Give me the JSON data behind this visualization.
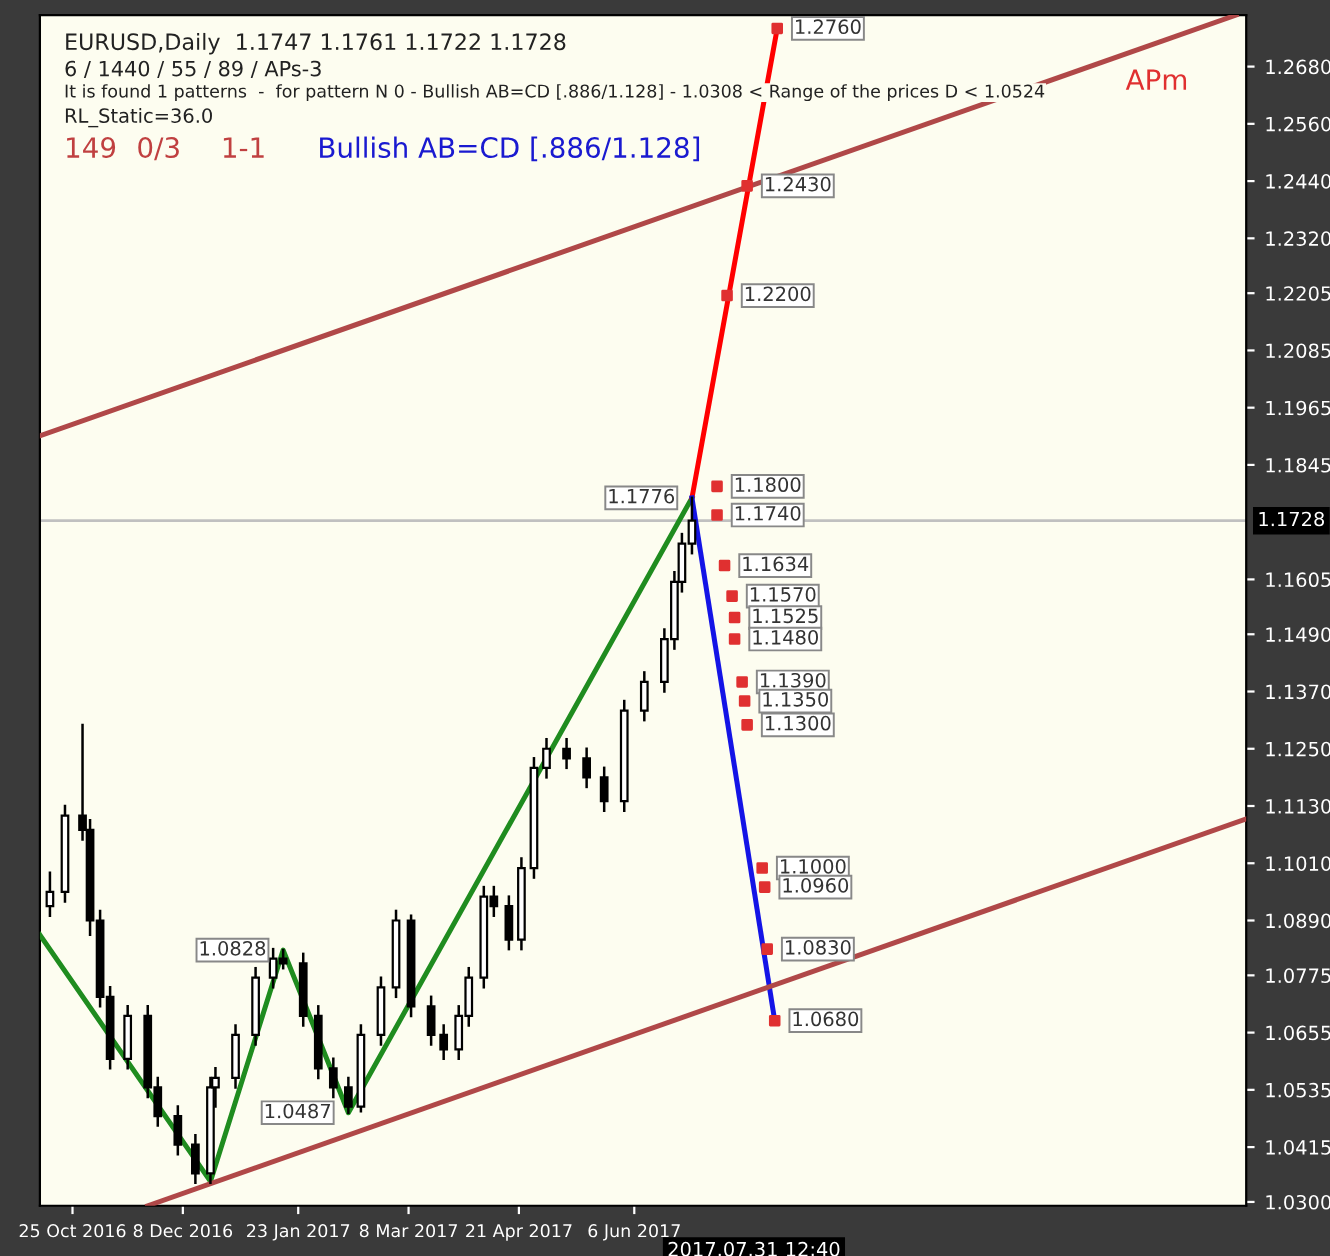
{
  "chart_data": {
    "type": "candlestick",
    "x": [
      "2016-10-16",
      "2016-10-22",
      "2016-10-29",
      "2016-11-01",
      "2016-11-05",
      "2016-11-09",
      "2016-11-16",
      "2016-11-24",
      "2016-11-28",
      "2016-12-06",
      "2016-12-13",
      "2016-12-19",
      "2016-12-21",
      "2016-12-29",
      "2017-01-06",
      "2017-01-13",
      "2017-01-17",
      "2017-01-25",
      "2017-01-31",
      "2017-02-06",
      "2017-02-12",
      "2017-02-17",
      "2017-02-25",
      "2017-03-03",
      "2017-03-09",
      "2017-03-17",
      "2017-03-22",
      "2017-03-28",
      "2017-04-01",
      "2017-04-07",
      "2017-04-11",
      "2017-04-17",
      "2017-04-22",
      "2017-04-27",
      "2017-05-02",
      "2017-05-10",
      "2017-05-18",
      "2017-05-25",
      "2017-06-02",
      "2017-06-10",
      "2017-06-18",
      "2017-06-22",
      "2017-06-25",
      "2017-06-29"
    ],
    "ohlc": [
      [
        1.092,
        1.099,
        1.09,
        1.095
      ],
      [
        1.095,
        1.113,
        1.093,
        1.111
      ],
      [
        1.111,
        1.13,
        1.106,
        1.108
      ],
      [
        1.108,
        1.11,
        1.086,
        1.089
      ],
      [
        1.089,
        1.091,
        1.071,
        1.073
      ],
      [
        1.073,
        1.075,
        1.058,
        1.06
      ],
      [
        1.06,
        1.071,
        1.058,
        1.069
      ],
      [
        1.069,
        1.071,
        1.052,
        1.054
      ],
      [
        1.054,
        1.056,
        1.046,
        1.048
      ],
      [
        1.048,
        1.05,
        1.04,
        1.042
      ],
      [
        1.042,
        1.044,
        1.034,
        1.036
      ],
      [
        1.036,
        1.056,
        1.034,
        1.054
      ],
      [
        1.054,
        1.058,
        1.05,
        1.056
      ],
      [
        1.056,
        1.067,
        1.054,
        1.065
      ],
      [
        1.065,
        1.079,
        1.063,
        1.077
      ],
      [
        1.077,
        1.083,
        1.075,
        1.081
      ],
      [
        1.081,
        1.0828,
        1.079,
        1.08
      ],
      [
        1.08,
        1.082,
        1.067,
        1.069
      ],
      [
        1.069,
        1.071,
        1.056,
        1.058
      ],
      [
        1.058,
        1.06,
        1.052,
        1.054
      ],
      [
        1.054,
        1.056,
        1.0487,
        1.05
      ],
      [
        1.05,
        1.067,
        1.049,
        1.065
      ],
      [
        1.065,
        1.077,
        1.063,
        1.075
      ],
      [
        1.075,
        1.091,
        1.073,
        1.089
      ],
      [
        1.089,
        1.09,
        1.069,
        1.071
      ],
      [
        1.071,
        1.073,
        1.063,
        1.065
      ],
      [
        1.065,
        1.067,
        1.06,
        1.062
      ],
      [
        1.062,
        1.071,
        1.06,
        1.069
      ],
      [
        1.069,
        1.079,
        1.067,
        1.077
      ],
      [
        1.077,
        1.096,
        1.075,
        1.094
      ],
      [
        1.094,
        1.096,
        1.09,
        1.092
      ],
      [
        1.092,
        1.094,
        1.083,
        1.085
      ],
      [
        1.085,
        1.102,
        1.083,
        1.1
      ],
      [
        1.1,
        1.123,
        1.098,
        1.121
      ],
      [
        1.121,
        1.127,
        1.119,
        1.125
      ],
      [
        1.125,
        1.127,
        1.121,
        1.123
      ],
      [
        1.123,
        1.125,
        1.117,
        1.119
      ],
      [
        1.119,
        1.121,
        1.112,
        1.114
      ],
      [
        1.114,
        1.135,
        1.112,
        1.133
      ],
      [
        1.133,
        1.141,
        1.131,
        1.139
      ],
      [
        1.139,
        1.15,
        1.137,
        1.148
      ],
      [
        1.148,
        1.162,
        1.146,
        1.16
      ],
      [
        1.16,
        1.17,
        1.158,
        1.168
      ],
      [
        1.168,
        1.1776,
        1.166,
        1.1728
      ]
    ],
    "series": [
      {
        "type": "line",
        "color": "#1f8c1f",
        "x": [
          "2016-10-12",
          "2016-12-19",
          "2017-01-17",
          "2017-02-12",
          "2017-06-29"
        ],
        "values": [
          1.086,
          1.0343,
          1.0828,
          1.0487,
          1.1776
        ]
      },
      {
        "type": "line",
        "color": "#ff0000",
        "x": [
          "2017-06-29",
          "2017-08-02"
        ],
        "values": [
          1.1776,
          1.276
        ]
      },
      {
        "type": "line",
        "color": "#1414e6",
        "x": [
          "2017-06-29",
          "2017-08-01"
        ],
        "values": [
          1.1776,
          1.068
        ]
      },
      {
        "type": "line",
        "color": "#b04848",
        "x": [
          "2016-10-12",
          "2018-02-01"
        ],
        "values": [
          1.1906,
          1.2788
        ]
      },
      {
        "type": "line",
        "color": "#b04848",
        "x": [
          "2016-11-24",
          "2018-02-05"
        ],
        "values": [
          1.0292,
          1.1103
        ]
      },
      {
        "type": "scatter",
        "color": "#e03030",
        "marker": "square",
        "x": [
          "2017-08-02",
          "2017-07-21",
          "2017-07-13",
          "2017-07-09",
          "2017-07-09",
          "2017-07-12",
          "2017-07-15",
          "2017-07-16",
          "2017-07-16",
          "2017-07-19",
          "2017-07-20",
          "2017-07-21",
          "2017-07-27",
          "2017-07-28",
          "2017-07-29",
          "2017-08-01"
        ],
        "values": [
          1.276,
          1.243,
          1.22,
          1.18,
          1.174,
          1.1634,
          1.157,
          1.1525,
          1.148,
          1.139,
          1.135,
          1.13,
          1.1,
          1.096,
          1.083,
          1.068
        ]
      }
    ],
    "ref_lines": [
      {
        "axis": "y",
        "value": 1.1728,
        "label": "1.1728",
        "color": "#c0c0c0"
      }
    ],
    "xlim": [
      "2016-10-12",
      "2018-02-05"
    ],
    "xticks": [
      {
        "value": "2016-10-25",
        "label": "25 Oct 2016"
      },
      {
        "value": "2016-12-08",
        "label": "8 Dec 2016"
      },
      {
        "value": "2017-01-23",
        "label": "23 Jan 2017"
      },
      {
        "value": "2017-03-08",
        "label": "8 Mar 2017"
      },
      {
        "value": "2017-04-21",
        "label": "21 Apr 2017"
      },
      {
        "value": "2017-06-06",
        "label": "6 Jun 2017"
      }
    ],
    "ylim": [
      1.0292,
      1.2788
    ],
    "yticks": [
      {
        "value": 1.268,
        "label": "1.2680"
      },
      {
        "value": 1.256,
        "label": "1.2560"
      },
      {
        "value": 1.244,
        "label": "1.2440"
      },
      {
        "value": 1.232,
        "label": "1.2320"
      },
      {
        "value": 1.2205,
        "label": "1.2205"
      },
      {
        "value": 1.2085,
        "label": "1.2085"
      },
      {
        "value": 1.1965,
        "label": "1.1965"
      },
      {
        "value": 1.1845,
        "label": "1.1845"
      },
      {
        "value": 1.1605,
        "label": "1.1605"
      },
      {
        "value": 1.149,
        "label": "1.1490"
      },
      {
        "value": 1.137,
        "label": "1.1370"
      },
      {
        "value": 1.125,
        "label": "1.1250"
      },
      {
        "value": 1.113,
        "label": "1.1130"
      },
      {
        "value": 1.101,
        "label": "1.1010"
      },
      {
        "value": 1.089,
        "label": "1.0890"
      },
      {
        "value": 1.0775,
        "label": "1.0775"
      },
      {
        "value": 1.0655,
        "label": "1.0655"
      },
      {
        "value": 1.0535,
        "label": "1.0535"
      },
      {
        "value": 1.0415,
        "label": "1.0415"
      },
      {
        "value": 1.03,
        "label": "1.0300"
      }
    ],
    "annotations": [
      "EURUSD,Daily  1.1747 1.1761 1.1722 1.1728",
      "6 / 1440 / 55 / 89 / APs-3",
      "It is found 1 patterns  -  for pattern N 0 - Bullish AB=CD [.886/1.128] - 1.0308 < Range of the prices D < 1.0524",
      "RL_Static=36.0",
      "149",
      "0/3",
      "1-1",
      "Bullish AB=CD [.886/1.128]",
      "APm",
      "2017.07.31 12:40",
      {
        "text": "1.2760",
        "x": "2017-08-02",
        "y": 1.276
      },
      {
        "text": "1.2430",
        "x": "2017-07-21",
        "y": 1.243
      },
      {
        "text": "1.2200",
        "x": "2017-07-13",
        "y": 1.22
      },
      {
        "text": "1.1800",
        "x": "2017-07-09",
        "y": 1.18
      },
      {
        "text": "1.1776",
        "x": "2017-06-29",
        "y": 1.1776
      },
      {
        "text": "1.1740",
        "x": "2017-07-09",
        "y": 1.174
      },
      {
        "text": "1.1634",
        "x": "2017-07-12",
        "y": 1.1634
      },
      {
        "text": "1.1570",
        "x": "2017-07-15",
        "y": 1.157
      },
      {
        "text": "1.1525",
        "x": "2017-07-16",
        "y": 1.1525
      },
      {
        "text": "1.1480",
        "x": "2017-07-16",
        "y": 1.148
      },
      {
        "text": "1.1390",
        "x": "2017-07-19",
        "y": 1.139
      },
      {
        "text": "1.1350",
        "x": "2017-07-20",
        "y": 1.135
      },
      {
        "text": "1.1300",
        "x": "2017-07-21",
        "y": 1.13
      },
      {
        "text": "1.1000",
        "x": "2017-07-27",
        "y": 1.1
      },
      {
        "text": "1.0960",
        "x": "2017-07-28",
        "y": 1.096
      },
      {
        "text": "1.0830",
        "x": "2017-07-29",
        "y": 1.083
      },
      {
        "text": "1.0680",
        "x": "2017-08-01",
        "y": 1.068
      },
      {
        "text": "1.0828",
        "x": "2017-01-17",
        "y": 1.0828
      },
      {
        "text": "1.0487",
        "x": "2017-02-12",
        "y": 1.0487
      }
    ],
    "grid": false,
    "legend": false
  }
}
